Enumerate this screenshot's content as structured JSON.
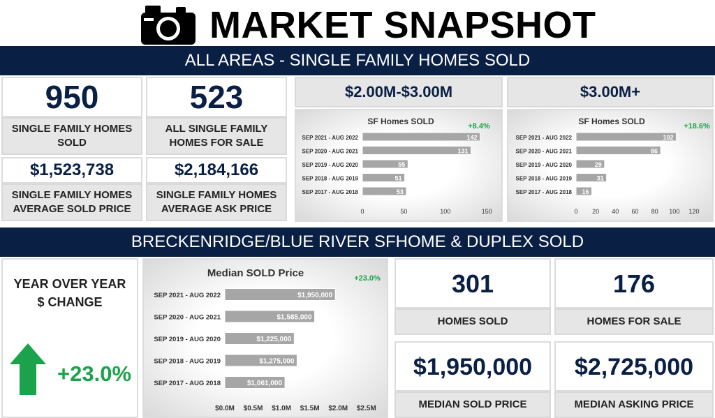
{
  "header": {
    "title": "MARKET SNAPSHOT",
    "icon": "camera-icon",
    "section1": "ALL AREAS - SINGLE FAMILY HOMES SOLD",
    "section2": "BRECKENRIDGE/BLUE RIVER SFHOME & DUPLEX SOLD"
  },
  "all_areas": {
    "homes_sold": {
      "value": "950",
      "label": "SINGLE FAMILY HOMES SOLD"
    },
    "for_sale": {
      "value": "523",
      "label": "ALL SINGLE FAMILY HOMES FOR SALE"
    },
    "avg_sold": {
      "value": "$1,523,738",
      "label": "SINGLE FAMILY HOMES AVERAGE SOLD PRICE"
    },
    "avg_ask": {
      "value": "$2,184,166",
      "label": "SINGLE FAMILY HOMES AVERAGE ASK PRICE"
    },
    "range1": "$2.00M-$3.00M",
    "range2": "$3.00M+"
  },
  "breck": {
    "yoy_label": "YEAR OVER YEAR $ CHANGE",
    "yoy_value": "+23.0%",
    "homes_sold": {
      "value": "301",
      "label": "HOMES SOLD"
    },
    "for_sale": {
      "value": "176",
      "label": "HOMES FOR SALE"
    },
    "median_sold": {
      "value": "$1,950,000",
      "label": "MEDIAN SOLD PRICE"
    },
    "median_ask": {
      "value": "$2,725,000",
      "label": "MEDIAN ASKING PRICE"
    }
  },
  "colors": {
    "navy": "#0a1f44",
    "green": "#1aa34a",
    "bar": "#a6a6a6"
  },
  "chart_data": [
    {
      "type": "bar",
      "title": "SF Homes SOLD",
      "badge": "+8.4%",
      "categories": [
        "SEP 2021 - AUG 2022",
        "SEP 2020 - AUG 2021",
        "SEP 2019 - AUG 2020",
        "SEP 2018 - AUG 2019",
        "SEP 2017 - AUG 2018"
      ],
      "values": [
        142,
        131,
        55,
        51,
        53
      ],
      "labels": [
        "142",
        "131",
        "55",
        "51",
        "53"
      ],
      "xlim": [
        0,
        160
      ],
      "ticks": [
        0,
        50,
        100,
        150
      ],
      "tick_labels": [
        "0",
        "50",
        "100",
        "150"
      ]
    },
    {
      "type": "bar",
      "title": "SF Homes SOLD",
      "badge": "+18.6%",
      "categories": [
        "SEP 2021 - AUG 2022",
        "SEP 2020 - AUG 2021",
        "SEP 2019 - AUG 2020",
        "SEP 2018 - AUG 2019",
        "SEP 2017 - AUG 2018"
      ],
      "values": [
        102,
        86,
        29,
        31,
        16
      ],
      "labels": [
        "102",
        "86",
        "29",
        "31",
        "16"
      ],
      "xlim": [
        0,
        130
      ],
      "ticks": [
        0,
        20,
        40,
        60,
        80,
        100,
        120
      ],
      "tick_labels": [
        "0",
        "20",
        "40",
        "60",
        "80",
        "100",
        "120"
      ]
    },
    {
      "type": "bar",
      "title": "Median SOLD Price",
      "badge": "+23.0%",
      "categories": [
        "SEP 2021 - AUG 2022",
        "SEP 2020 - AUG 2021",
        "SEP 2019 - AUG 2020",
        "SEP 2018 - AUG 2019",
        "SEP 2017 - AUG 2018"
      ],
      "values": [
        1950000,
        1585000,
        1225000,
        1275000,
        1061000
      ],
      "labels": [
        "$1,950,000",
        "$1,585,000",
        "$1,225,000",
        "$1,275,000",
        "$1,061,000"
      ],
      "xlim": [
        0,
        2700000
      ],
      "ticks": [
        0,
        500000,
        1000000,
        1500000,
        2000000,
        2500000
      ],
      "tick_labels": [
        "$0.0M",
        "$0.5M",
        "$1.0M",
        "$1.5M",
        "$2.0M",
        "$2.5M"
      ]
    }
  ]
}
